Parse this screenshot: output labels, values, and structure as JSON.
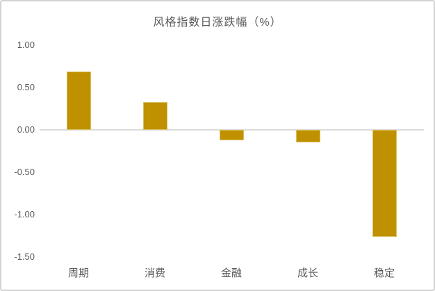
{
  "chart_data": {
    "type": "bar",
    "title": "风格指数日涨跌幅（%）",
    "categories": [
      "周期",
      "消费",
      "金融",
      "成长",
      "稳定"
    ],
    "values": [
      0.69,
      0.33,
      -0.12,
      -0.15,
      -1.26
    ],
    "series": [
      {
        "name": "风格指数日涨跌幅",
        "values": [
          0.69,
          0.33,
          -0.12,
          -0.15,
          -1.26
        ]
      }
    ],
    "xlabel": "",
    "ylabel": "",
    "ylim": [
      -1.5,
      1.0
    ],
    "yticks": [
      {
        "label": "1.00",
        "value": 1.0
      },
      {
        "label": "0.50",
        "value": 0.5
      },
      {
        "label": "0.00",
        "value": 0.0
      },
      {
        "label": "-0.50",
        "value": -0.5
      },
      {
        "label": "-1.00",
        "value": -1.0
      },
      {
        "label": "-1.50",
        "value": -1.5
      }
    ],
    "grid": false,
    "legend_position": "none",
    "colors": {
      "bar_fill": "#BF9000",
      "bar_border": "#D8C15F",
      "axis_line": "#DBDBDB",
      "text": "#595959",
      "background": "#FFFFFF",
      "frame_border": "#D2D2D2"
    }
  }
}
